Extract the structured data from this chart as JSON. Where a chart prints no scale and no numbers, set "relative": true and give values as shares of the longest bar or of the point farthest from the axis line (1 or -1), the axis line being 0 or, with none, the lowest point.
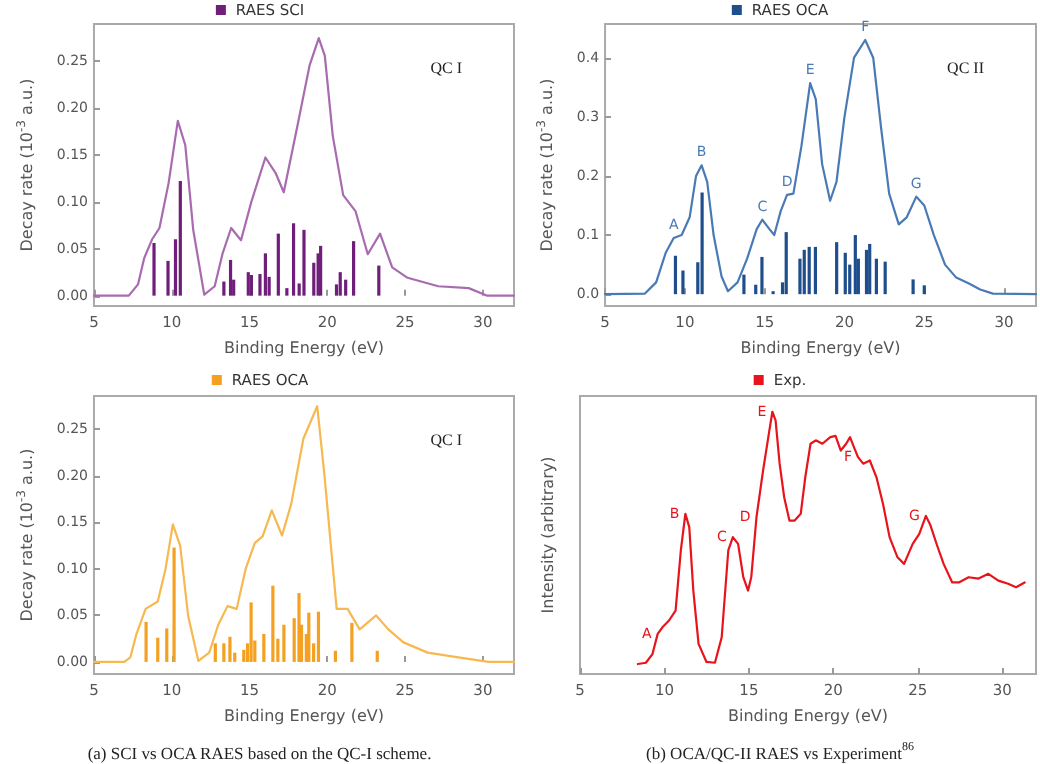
{
  "chart_data": [
    {
      "type": "line",
      "xlabel": "Binding Energy (eV)",
      "ylabel": "Decay rate (10$^{-3}$ a.u.)",
      "xlim": [
        5,
        32
      ],
      "xticks": [
        5,
        10,
        15,
        20,
        25,
        30
      ],
      "ylim": [
        -0.011,
        0.289
      ],
      "yticks": [
        {
          "value": 0,
          "label": "0.00"
        },
        0.05,
        {
          "value": 0.1,
          "label": "0.10"
        },
        0.15,
        {
          "value": 0.2,
          "label": "0.20"
        },
        0.25
      ],
      "legend": "top",
      "marker": "none",
      "line_style": "solid",
      "annotations": [
        "QC I"
      ],
      "series": [
        {
          "color": "#a86bb0",
          "x": [
            5,
            7.24,
            7.83,
            8.23,
            8.74,
            9.21,
            9.8,
            10.39,
            10.87,
            11.38,
            12.09,
            12.76,
            13.27,
            13.82,
            14.45,
            15.12,
            16.02,
            16.69,
            17.2,
            18.07,
            18.86,
            19.45,
            19.84,
            20.35,
            21.02,
            21.81,
            22.6,
            23.39,
            24.17,
            25.16,
            27.13,
            29.09,
            30.28,
            32
          ],
          "values": [
            0,
            0,
            0.012,
            0.04,
            0.06,
            0.072,
            0.12,
            0.186,
            0.16,
            0.07,
            0.001,
            0.01,
            0.045,
            0.072,
            0.059,
            0.1,
            0.147,
            0.13,
            0.11,
            0.18,
            0.245,
            0.274,
            0.255,
            0.17,
            0.107,
            0.09,
            0.044,
            0.066,
            0.03,
            0.019,
            0.01,
            0.008,
            0,
            0
          ]
        },
        {
          "type": "bar",
          "name": "RAES SCI",
          "color": "#6f1f7a",
          "x": [
            8.86,
            9.76,
            10.24,
            10.55,
            13.35,
            13.78,
            13.98,
            14.92,
            15.12,
            15.67,
            16.02,
            16.26,
            16.85,
            17.4,
            17.83,
            18.19,
            18.5,
            19.13,
            19.41,
            19.57,
            20.59,
            20.83,
            21.18,
            21.69,
            23.31
          ],
          "values": [
            0.056,
            0.037,
            0.06,
            0.122,
            0.015,
            0.038,
            0.017,
            0.025,
            0.022,
            0.023,
            0.045,
            0.02,
            0.066,
            0.008,
            0.077,
            0.013,
            0.07,
            0.035,
            0.045,
            0.053,
            0.012,
            0.025,
            0.017,
            0.058,
            0.032
          ]
        }
      ]
    },
    {
      "type": "line",
      "xlabel": "Binding Energy (eV)",
      "ylabel": "Decay rate (10$^{-3}$ a.u.)",
      "xlim": [
        5,
        32
      ],
      "xticks": [
        5,
        10,
        15,
        20,
        25,
        30
      ],
      "ylim": [
        -0.02,
        0.457
      ],
      "yticks": [
        {
          "value": 0,
          "label": "0.0"
        },
        0.1,
        0.2,
        0.3,
        0.4
      ],
      "legend": "top",
      "marker": "none",
      "line_style": "solid",
      "annotations": [
        "QC II",
        {
          "text": "A",
          "x": 9.3,
          "y": 0.095
        },
        {
          "text": "B",
          "x": 11.05,
          "y": 0.218
        },
        {
          "text": "C",
          "x": 14.85,
          "y": 0.126
        },
        {
          "text": "D",
          "x": 16.4,
          "y": 0.168
        },
        {
          "text": "E",
          "x": 17.85,
          "y": 0.357
        },
        {
          "text": "F",
          "x": 21.3,
          "y": 0.43
        },
        {
          "text": "G",
          "x": 24.5,
          "y": 0.165
        }
      ],
      "series": [
        {
          "color": "#4a7ab5",
          "x": [
            5,
            7.5,
            8.2,
            8.8,
            9.3,
            9.8,
            10.3,
            10.7,
            11.05,
            11.4,
            11.8,
            12.3,
            12.7,
            13.3,
            13.9,
            14.5,
            14.85,
            15.3,
            15.6,
            16.0,
            16.4,
            16.8,
            17.3,
            17.85,
            18.2,
            18.6,
            19.1,
            19.5,
            20.0,
            20.6,
            21.3,
            21.8,
            22.3,
            22.8,
            23.4,
            23.9,
            24.5,
            25.0,
            25.6,
            26.3,
            27,
            27.8,
            28.5,
            29.3,
            32
          ],
          "values": [
            0,
            0.001,
            0.02,
            0.07,
            0.095,
            0.1,
            0.13,
            0.2,
            0.218,
            0.19,
            0.1,
            0.03,
            0.005,
            0.02,
            0.06,
            0.11,
            0.126,
            0.11,
            0.1,
            0.14,
            0.168,
            0.17,
            0.25,
            0.357,
            0.33,
            0.22,
            0.158,
            0.19,
            0.3,
            0.4,
            0.43,
            0.4,
            0.28,
            0.17,
            0.118,
            0.13,
            0.165,
            0.15,
            0.1,
            0.05,
            0.028,
            0.018,
            0.008,
            0.001,
            0
          ]
        },
        {
          "type": "bar",
          "name": "RAES OCA",
          "color": "#1f4e8c",
          "x": [
            9.41,
            9.88,
            10.81,
            11.08,
            13.7,
            14.44,
            14.83,
            15.53,
            16.12,
            16.35,
            17.21,
            17.48,
            17.79,
            18.18,
            19.51,
            20.05,
            20.33,
            20.68,
            20.87,
            21.38,
            21.58,
            22.0,
            22.55,
            24.3,
            25.0
          ],
          "values": [
            0.065,
            0.04,
            0.054,
            0.172,
            0.033,
            0.016,
            0.063,
            0.005,
            0.02,
            0.105,
            0.06,
            0.075,
            0.08,
            0.08,
            0.088,
            0.07,
            0.05,
            0.1,
            0.06,
            0.075,
            0.085,
            0.06,
            0.055,
            0.025,
            0.015
          ]
        }
      ]
    },
    {
      "type": "line",
      "xlabel": "Binding Energy (eV)",
      "ylabel": "Decay rate (10$^{-3}$ a.u.)",
      "xlim": [
        5,
        32
      ],
      "xticks": [
        5,
        10,
        15,
        20,
        25,
        30
      ],
      "ylim": [
        -0.013,
        0.286
      ],
      "yticks": [
        {
          "value": 0,
          "label": "0.00"
        },
        0.05,
        {
          "value": 0.1,
          "label": "0.10"
        },
        0.15,
        {
          "value": 0.2,
          "label": "0.20"
        },
        0.25
      ],
      "legend": "top",
      "marker": "none",
      "line_style": "solid",
      "annotations": [
        "QC I",
        "(a) SCI vs OCA RAES based on the QC-I scheme."
      ],
      "series": [
        {
          "color": "#f8b850",
          "x": [
            5,
            6.95,
            7.34,
            7.73,
            8.32,
            9.1,
            9.6,
            10.07,
            10.54,
            11.05,
            11.71,
            12.41,
            12.99,
            13.58,
            14.17,
            14.75,
            15.34,
            15.84,
            16.43,
            17.09,
            17.68,
            18.46,
            19.35,
            19.82,
            20.6,
            21.3,
            22.08,
            23.14,
            23.92,
            24.89,
            26.45,
            28.0,
            29.18,
            30.35,
            32
          ],
          "values": [
            0,
            0,
            0.005,
            0.03,
            0.057,
            0.065,
            0.1,
            0.148,
            0.125,
            0.05,
            0.001,
            0.01,
            0.04,
            0.06,
            0.057,
            0.1,
            0.128,
            0.135,
            0.163,
            0.136,
            0.17,
            0.24,
            0.275,
            0.2,
            0.057,
            0.057,
            0.035,
            0.05,
            0.035,
            0.021,
            0.01,
            0.006,
            0.003,
            0,
            0
          ]
        },
        {
          "type": "bar",
          "name": "RAES OCA",
          "color": "#f4a020",
          "x": [
            8.35,
            9.1,
            9.68,
            10.15,
            12.8,
            13.35,
            13.74,
            14.05,
            14.63,
            14.87,
            15.1,
            15.34,
            15.92,
            16.5,
            16.82,
            17.21,
            17.87,
            18.18,
            18.34,
            18.65,
            18.81,
            19.12,
            19.43,
            20.52,
            21.58,
            23.21
          ],
          "values": [
            0.043,
            0.026,
            0.036,
            0.123,
            0.02,
            0.02,
            0.027,
            0.01,
            0.013,
            0.02,
            0.064,
            0.023,
            0.03,
            0.082,
            0.025,
            0.04,
            0.047,
            0.074,
            0.04,
            0.03,
            0.053,
            0.02,
            0.054,
            0.012,
            0.042,
            0.012
          ]
        }
      ]
    },
    {
      "type": "line",
      "relative": true,
      "tick_labels": "x",
      "xlabel": "Binding Energy (eV)",
      "ylabel": "Intensity (arbitrary)",
      "xlim": [
        5,
        32
      ],
      "xticks": [
        5,
        10,
        15,
        20,
        25,
        30
      ],
      "legend": "top",
      "marker": "none",
      "line_style": "solid",
      "annotations": [
        {
          "text": "A",
          "x": 9.6,
          "y": 0.153
        },
        {
          "text": "B",
          "x": 11.24,
          "y": 0.611
        },
        {
          "text": "C",
          "x": 14.05,
          "y": 0.522
        },
        {
          "text": "D",
          "x": 15.45,
          "y": 0.598
        },
        {
          "text": "E",
          "x": 16.39,
          "y": 1.0
        },
        {
          "text": "F",
          "x": 21.46,
          "y": 0.827
        },
        {
          "text": "G",
          "x": 25.48,
          "y": 0.603
        },
        "(b) OCA/QC-II RAES vs Experiment$^{86}$"
      ],
      "series": [
        {
          "name": "Exp.",
          "color": "#e8141c",
          "x": [
            8.43,
            8.9,
            9.29,
            9.6,
            9.88,
            10.27,
            10.66,
            10.97,
            11.24,
            11.47,
            11.71,
            12.02,
            12.49,
            12.99,
            13.39,
            13.78,
            14.05,
            14.36,
            14.67,
            14.95,
            15.14,
            15.45,
            15.84,
            16.15,
            16.39,
            16.58,
            16.82,
            17.09,
            17.4,
            17.71,
            18.07,
            18.34,
            18.65,
            18.96,
            19.35,
            19.82,
            20.13,
            20.44,
            20.76,
            20.99,
            21.22,
            21.46,
            21.77,
            22.16,
            22.55,
            22.94,
            23.33,
            23.8,
            24.19,
            24.7,
            25.09,
            25.48,
            25.75,
            26.14,
            26.53,
            27.04,
            27.43,
            28.01,
            28.6,
            29.18,
            29.77,
            30.35,
            30.82,
            31.33
          ],
          "values": [
            0.038,
            0.043,
            0.076,
            0.153,
            0.178,
            0.204,
            0.242,
            0.471,
            0.611,
            0.56,
            0.318,
            0.115,
            0.046,
            0.043,
            0.14,
            0.471,
            0.522,
            0.496,
            0.369,
            0.318,
            0.369,
            0.598,
            0.776,
            0.903,
            1.0,
            0.967,
            0.802,
            0.674,
            0.585,
            0.585,
            0.611,
            0.751,
            0.878,
            0.891,
            0.878,
            0.903,
            0.908,
            0.852,
            0.878,
            0.903,
            0.865,
            0.827,
            0.802,
            0.814,
            0.751,
            0.649,
            0.522,
            0.445,
            0.42,
            0.496,
            0.534,
            0.603,
            0.567,
            0.491,
            0.42,
            0.349,
            0.349,
            0.369,
            0.364,
            0.382,
            0.356,
            0.344,
            0.331,
            0.349
          ]
        }
      ]
    }
  ]
}
